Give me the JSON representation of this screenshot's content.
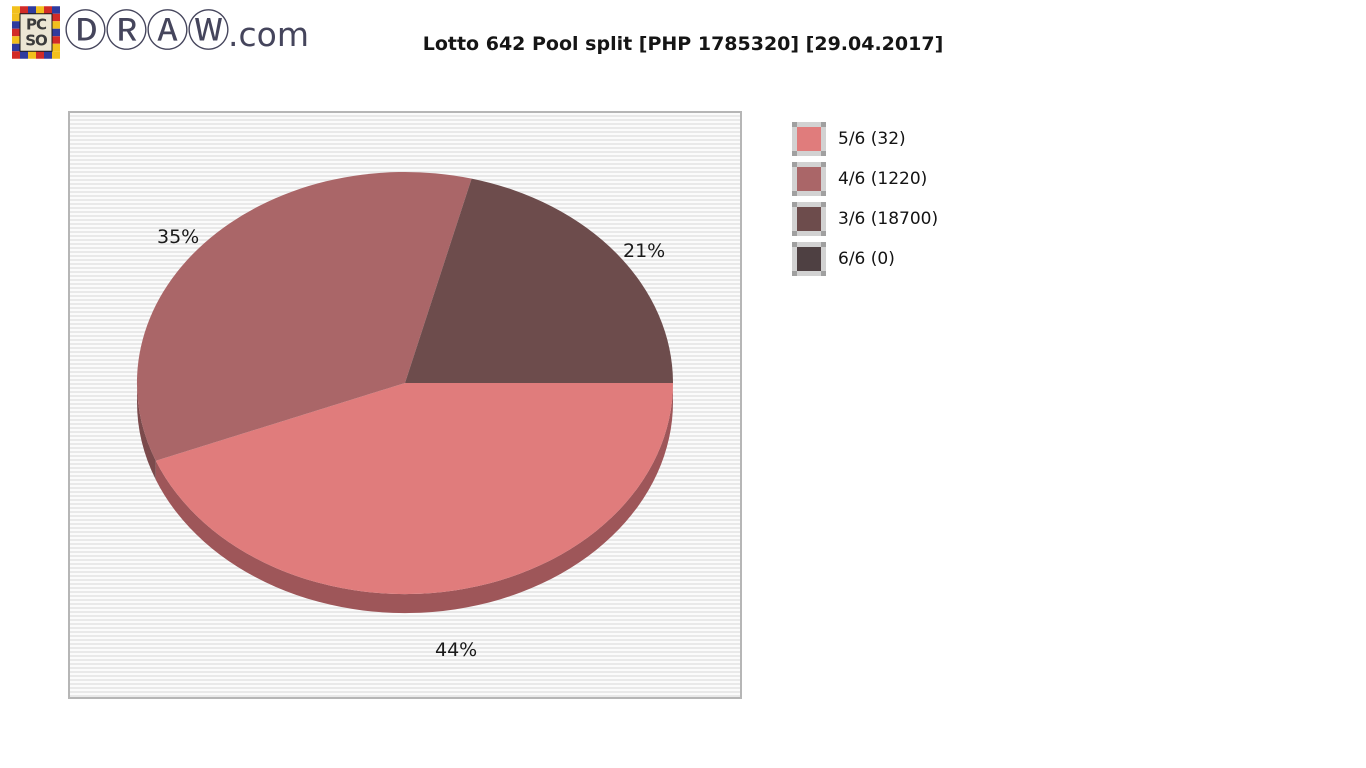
{
  "logo": {
    "site_name": "ⒹⓇⒶⓌ",
    "site_tld": ".com",
    "icon": "pcso-checkered-icon",
    "icon_text_top": "PC",
    "icon_text_bottom": "SO"
  },
  "title": "Lotto 642 Pool split [PHP 1785320] [29.04.2017]",
  "chart_data": {
    "type": "pie",
    "title": "Lotto 642 Pool split [PHP 1785320] [29.04.2017]",
    "currency_pool": "PHP 1785320",
    "draw_date": "29.04.2017",
    "start_angle_deg": 0,
    "direction": "clockwise",
    "effect": "3d",
    "legend_position": "right",
    "slices": [
      {
        "label": "5/6",
        "count": 32,
        "pct": 44,
        "pct_label": "44%",
        "legend_label": "5/6 (32)",
        "color": "#e07c7c",
        "side_color": "#9e5659"
      },
      {
        "label": "4/6",
        "count": 1220,
        "pct": 35,
        "pct_label": "35%",
        "legend_label": "4/6 (1220)",
        "color": "#aa6668",
        "side_color": "#7b4a4c"
      },
      {
        "label": "3/6",
        "count": 18700,
        "pct": 21,
        "pct_label": "21%",
        "legend_label": "3/6 (18700)",
        "color": "#6d4c4c",
        "side_color": "#4f393a"
      },
      {
        "label": "6/6",
        "count": 0,
        "pct": 0,
        "pct_label": "0%",
        "legend_label": "6/6 (0)",
        "color": "#4e4042",
        "side_color": "#3a3032"
      }
    ],
    "panel": {
      "background_stripes": [
        "#fbfbfb",
        "#e9e9e9"
      ],
      "border_color": "#b6b6b6"
    }
  }
}
